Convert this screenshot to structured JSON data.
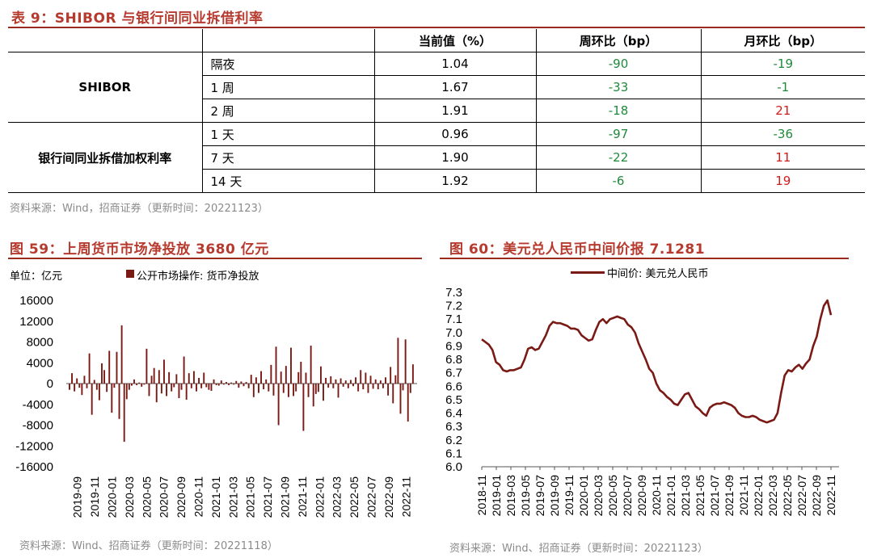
{
  "table": {
    "title": "表 9：SHIBOR 与银行间同业拆借利率",
    "headers": [
      "当前值（%）",
      "周环比（bp）",
      "月环比（bp）"
    ],
    "groups": [
      {
        "name": "SHIBOR",
        "rows": [
          {
            "term": "隔夜",
            "current": "1.04",
            "wow": "-90",
            "mom": "-19"
          },
          {
            "term": "1 周",
            "current": "1.67",
            "wow": "-33",
            "mom": "-1"
          },
          {
            "term": "2 周",
            "current": "1.91",
            "wow": "-18",
            "mom": "21"
          }
        ]
      },
      {
        "name": "银行间同业拆借加权利率",
        "rows": [
          {
            "term": "1 天",
            "current": "0.96",
            "wow": "-97",
            "mom": "-36"
          },
          {
            "term": "7 天",
            "current": "1.90",
            "wow": "-22",
            "mom": "11"
          },
          {
            "term": "14 天",
            "current": "1.92",
            "wow": "-6",
            "mom": "19"
          }
        ]
      }
    ],
    "source": "资料来源：Wind，招商证券（更新时间：20221123）"
  },
  "fig59": {
    "title": "图 59：上周货币市场净投放 3680 亿元",
    "unit": "单位：亿元",
    "legend": "公开市场操作: 货币净投放",
    "source": "资料来源：Wind、招商证券（更新时间：20221118）"
  },
  "fig60": {
    "title": "图 60：美元兑人民币中间价报 7.1281",
    "legend": "中间价: 美元兑人民币",
    "source": "资料来源：Wind、招商证券（更新时间：20221123）"
  },
  "colors": {
    "accent": "#b63a2d",
    "series": "#7a1a15",
    "positive": "#d21c1c",
    "negative": "#1f8a3b"
  },
  "chart_data": [
    {
      "type": "bar",
      "title": "",
      "ylabel": "单位：亿元",
      "ylim": [
        -16000,
        16000
      ],
      "yticks": [
        16000,
        12000,
        8000,
        4000,
        0,
        -4000,
        -8000,
        -12000,
        -16000
      ],
      "xticks": [
        "2019-09",
        "2019-11",
        "2020-01",
        "2020-03",
        "2020-05",
        "2020-07",
        "2020-09",
        "2020-11",
        "2021-01",
        "2021-03",
        "2021-05",
        "2021-07",
        "2021-09",
        "2021-11",
        "2022-01",
        "2022-03",
        "2022-05",
        "2022-07",
        "2022-09",
        "2022-11"
      ],
      "series": [
        {
          "name": "公开市场操作: 货币净投放",
          "values": [
            -1200,
            2000,
            -1500,
            1000,
            -800,
            -2200,
            1500,
            -900,
            5800,
            -6000,
            700,
            -1200,
            -3200,
            3900,
            2600,
            -1600,
            6300,
            -5600,
            -800,
            6100,
            -6800,
            11200,
            -11200,
            -3000,
            -1200,
            -400,
            800,
            -300,
            200,
            -600,
            -200,
            6700,
            -2400,
            1500,
            3000,
            -3600,
            2600,
            -1900,
            4600,
            -2400,
            2200,
            -1500,
            -700,
            1800,
            -2800,
            -1200,
            5200,
            -3100,
            2000,
            -900,
            2400,
            -1500,
            1100,
            -900,
            2100,
            -700,
            -1200,
            -1400,
            800,
            -300,
            -400,
            600,
            -200,
            300,
            -300,
            200,
            -200,
            500,
            -800,
            400,
            -500,
            300,
            -900,
            1700,
            -2600,
            1200,
            -1800,
            2400,
            -1100,
            800,
            -1500,
            3600,
            -2300,
            7100,
            -8000,
            2300,
            -1800,
            3400,
            -2600,
            6900,
            -2400,
            -1500,
            2200,
            4200,
            -9100,
            2100,
            -2600,
            7300,
            -4400,
            -2000,
            -1600,
            3300,
            -3300,
            1100,
            -800,
            1400,
            -900,
            800,
            -2700,
            1000,
            -600,
            600,
            -900,
            700,
            -500,
            1200,
            -1500,
            2600,
            -1100,
            2100,
            -1800,
            1500,
            -1000,
            800,
            -1100,
            600,
            -900,
            1200,
            -2300,
            3200,
            -3800,
            1600,
            8800,
            -5800,
            -1300,
            8500,
            -7300,
            -1800,
            3700
          ]
        }
      ]
    },
    {
      "type": "line",
      "title": "",
      "ylim": [
        6.0,
        7.3
      ],
      "yticks": [
        7.3,
        7.2,
        7.1,
        7.0,
        6.9,
        6.8,
        6.7,
        6.6,
        6.5,
        6.4,
        6.3,
        6.2,
        6.1,
        6.0
      ],
      "xticks": [
        "2018-11",
        "2019-01",
        "2019-03",
        "2019-05",
        "2019-07",
        "2019-09",
        "2019-11",
        "2020-01",
        "2020-03",
        "2020-05",
        "2020-07",
        "2020-09",
        "2020-11",
        "2021-01",
        "2021-03",
        "2021-05",
        "2021-07",
        "2021-09",
        "2021-11",
        "2022-01",
        "2022-03",
        "2022-05",
        "2022-07",
        "2022-09",
        "2022-11"
      ],
      "series": [
        {
          "name": "中间价: 美元兑人民币",
          "values": [
            6.95,
            6.93,
            6.91,
            6.87,
            6.78,
            6.76,
            6.72,
            6.71,
            6.72,
            6.72,
            6.73,
            6.74,
            6.8,
            6.88,
            6.89,
            6.87,
            6.88,
            6.93,
            6.98,
            7.05,
            7.08,
            7.07,
            7.07,
            7.06,
            7.05,
            7.03,
            7.03,
            7.02,
            6.98,
            6.96,
            6.94,
            6.95,
            7.02,
            7.08,
            7.1,
            7.07,
            7.1,
            7.11,
            7.12,
            7.11,
            7.1,
            7.06,
            7.04,
            7.0,
            6.92,
            6.86,
            6.8,
            6.73,
            6.7,
            6.62,
            6.57,
            6.55,
            6.52,
            6.5,
            6.47,
            6.46,
            6.5,
            6.54,
            6.55,
            6.5,
            6.45,
            6.43,
            6.4,
            6.38,
            6.44,
            6.46,
            6.47,
            6.47,
            6.48,
            6.47,
            6.46,
            6.44,
            6.4,
            6.38,
            6.37,
            6.37,
            6.38,
            6.37,
            6.35,
            6.34,
            6.33,
            6.34,
            6.35,
            6.4,
            6.55,
            6.68,
            6.72,
            6.71,
            6.74,
            6.76,
            6.73,
            6.77,
            6.8,
            6.9,
            6.97,
            7.1,
            7.2,
            7.24,
            7.13
          ]
        }
      ]
    }
  ]
}
